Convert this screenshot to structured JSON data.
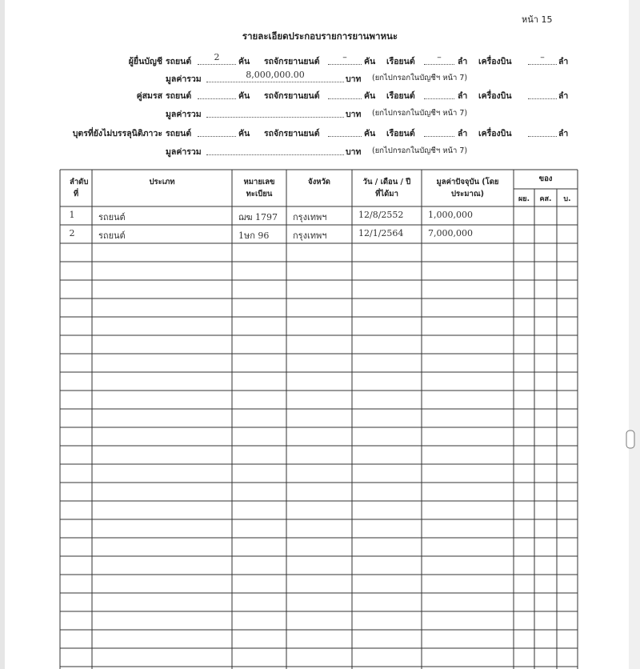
{
  "page_number": "หน้า 15",
  "title": "รายละเอียดประกอบรายการยานพาหนะ",
  "summary": [
    {
      "who": "ผู้ยื่นบัญชี",
      "line1": [
        "รถยนต์",
        "2",
        "คัน",
        "รถจักรยานยนต์",
        "–",
        "คัน",
        "เรือยนต์",
        "–",
        "ลำ",
        "เครื่องบิน",
        "–",
        "ลำ"
      ],
      "line2": [
        "มูลค่ารวม",
        "8,000,000.00",
        "บาท",
        "(ยกไปกรอกในบัญชีฯ หน้า 7)"
      ]
    },
    {
      "who": "คู่สมรส",
      "line1": [
        "รถยนต์",
        null,
        "คัน",
        "รถจักรยานยนต์",
        null,
        "คัน",
        "เรือยนต์",
        null,
        "ลำ",
        "เครื่องบิน",
        null,
        "ลำ"
      ],
      "line2": [
        "มูลค่ารวม",
        null,
        "บาท",
        "(ยกไปกรอกในบัญชีฯ หน้า 7)"
      ]
    },
    {
      "who": "บุตรที่ยังไม่บรรลุนิติภาวะ",
      "line1": [
        "รถยนต์",
        null,
        "คัน",
        "รถจักรยานยนต์",
        null,
        "คัน",
        "เรือยนต์",
        null,
        "ลำ",
        "เครื่องบิน",
        null,
        "ลำ"
      ],
      "line2": [
        "มูลค่ารวม",
        null,
        "บาท",
        "(ยกไปกรอกในบัญชีฯ หน้า 7)"
      ]
    }
  ],
  "table": {
    "headers": [
      "ลำดับ ที่",
      "ประเภท",
      "หมายเลข ทะเบียน",
      "จังหวัด",
      "วัน / เดือน / ปี ที่ได้มา",
      "มูลค่าปัจจุบัน (โดยประมาณ)",
      "ของ"
    ],
    "owner_headers": [
      "ผย.",
      "คส.",
      "บ."
    ],
    "rows": [
      [
        "1",
        "รถยนต์",
        "ฌฆ 1797",
        "กรุงเทพฯ",
        "12/8/2552",
        "1,000,000"
      ],
      [
        "2",
        "รถยนต์",
        "1ษก 96",
        "กรุงเทพฯ",
        "12/1/2564",
        "7,000,000"
      ]
    ]
  }
}
